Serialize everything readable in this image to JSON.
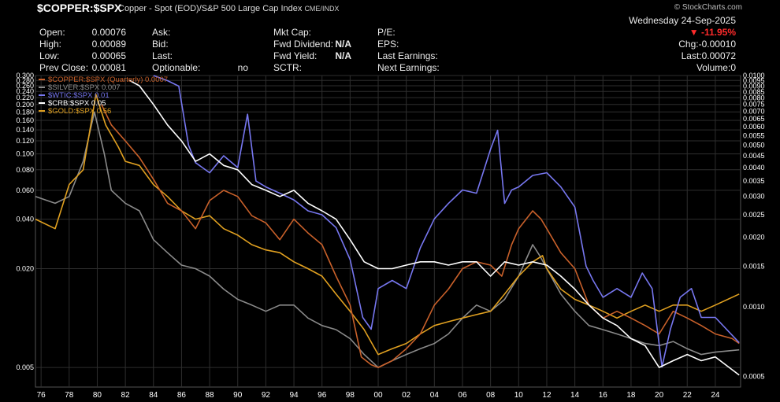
{
  "header": {
    "symbol": "$COPPER:$SPX",
    "description": "Copper - Spot (EOD)/S&P 500 Large Cap Index",
    "exchange": "CME/INDX",
    "brand": "© StockCharts.com",
    "date": "Wednesday  24-Sep-2025",
    "change_pct": "▼ -11.95%",
    "col1": [
      {
        "label": "Open:",
        "value": "0.00076"
      },
      {
        "label": "High:",
        "value": "0.00089"
      },
      {
        "label": "Low:",
        "value": "0.00065"
      },
      {
        "label": "Prev Close:",
        "value": "0.00081"
      }
    ],
    "col2": [
      {
        "label": "Ask:",
        "value": ""
      },
      {
        "label": "Bid:",
        "value": ""
      },
      {
        "label": "Last:",
        "value": ""
      },
      {
        "label": "Optionable:",
        "value": "no"
      }
    ],
    "col3": [
      {
        "label": "Mkt Cap:",
        "value": ""
      },
      {
        "label": "Fwd Dividend:",
        "value": "N/A"
      },
      {
        "label": "Fwd Yield:",
        "value": "N/A"
      },
      {
        "label": "SCTR:",
        "value": ""
      }
    ],
    "col4": [
      {
        "label": "P/E:",
        "value": ""
      },
      {
        "label": "EPS:",
        "value": ""
      },
      {
        "label": "Last Earnings:",
        "value": ""
      },
      {
        "label": "Next Earnings:",
        "value": ""
      }
    ],
    "col5": [
      {
        "label": "Chg:",
        "value": "-0.00010"
      },
      {
        "label": "Last:",
        "value": "0.00072"
      },
      {
        "label": "Volume:",
        "value": "0"
      }
    ]
  },
  "colors": {
    "copper": "#c8602a",
    "silver": "#8a8a8a",
    "wtic": "#7777f0",
    "crb": "#ffffff",
    "gold": "#e0a020",
    "grid": "#2e2e2e"
  },
  "chart_data": {
    "type": "line",
    "log_scale": true,
    "grid": true,
    "legend_position": "top-left",
    "x_tick_labels": [
      "76",
      "78",
      "80",
      "82",
      "84",
      "86",
      "88",
      "90",
      "92",
      "94",
      "96",
      "98",
      "00",
      "02",
      "04",
      "06",
      "08",
      "10",
      "12",
      "14",
      "16",
      "18",
      "20",
      "22",
      "24"
    ],
    "x_range": [
      1975.6,
      2025.8
    ],
    "y_left": {
      "range": [
        0.0038,
        0.3
      ],
      "ticks": [
        0.3,
        0.28,
        0.26,
        0.24,
        0.22,
        0.2,
        0.18,
        0.16,
        0.14,
        0.12,
        0.1,
        0.08,
        0.06,
        0.04,
        0.02,
        0.005
      ],
      "tick_labels": [
        "0.300",
        "0.280",
        "0.260",
        "0.240",
        "0.220",
        "0.200",
        "0.180",
        "0.160",
        "0.140",
        "0.120",
        "0.100",
        "0.080",
        "0.060",
        "0.040",
        "0.020",
        "0.005"
      ]
    },
    "y_right": {
      "range": [
        0.00045,
        0.01
      ],
      "ticks": [
        0.01,
        0.0095,
        0.009,
        0.0085,
        0.008,
        0.0075,
        0.007,
        0.0065,
        0.006,
        0.0055,
        0.005,
        0.0045,
        0.004,
        0.0035,
        0.003,
        0.0025,
        0.002,
        0.0015,
        0.001,
        0.0005
      ],
      "tick_labels": [
        "0.0100",
        "0.0095",
        "0.0090",
        "0.0085",
        "0.0080",
        "0.0075",
        "0.0070",
        "0.0065",
        "0.0060",
        "0.0055",
        "0.0050",
        "0.0045",
        "0.0040",
        "0.0035",
        "0.0030",
        "0.0025",
        "0.0020",
        "0.0015",
        "0.0010",
        "0.0005"
      ]
    },
    "series": [
      {
        "name": "$COPPER:$SPX (Quarterly) 0.0007",
        "color_key": "copper",
        "x": [
          1980.3,
          1981,
          1982,
          1983,
          1984,
          1985,
          1986,
          1987,
          1988,
          1989,
          1990,
          1991,
          1992,
          1993,
          1994,
          1995,
          1996,
          1997,
          1998,
          1998.8,
          1999.5,
          2000,
          2001,
          2002,
          2003,
          2004,
          2005,
          2006,
          2007,
          2008,
          2008.8,
          2009.5,
          2010,
          2011,
          2011.6,
          2012,
          2013,
          2014,
          2015,
          2016,
          2017,
          2018,
          2019,
          2020,
          2021,
          2022,
          2023,
          2024,
          2025.2,
          2025.7
        ],
        "y": [
          0.2,
          0.15,
          0.12,
          0.095,
          0.07,
          0.05,
          0.045,
          0.035,
          0.052,
          0.06,
          0.055,
          0.042,
          0.038,
          0.03,
          0.04,
          0.033,
          0.028,
          0.018,
          0.012,
          0.0058,
          0.0052,
          0.005,
          0.0055,
          0.0065,
          0.008,
          0.012,
          0.015,
          0.02,
          0.022,
          0.021,
          0.018,
          0.028,
          0.035,
          0.045,
          0.04,
          0.035,
          0.025,
          0.02,
          0.012,
          0.01,
          0.011,
          0.01,
          0.009,
          0.008,
          0.011,
          0.01,
          0.009,
          0.008,
          0.0075,
          0.007
        ]
      },
      {
        "name": "$SILVER:$SPX 0.007",
        "color_key": "silver",
        "x": [
          1975.6,
          1977,
          1978,
          1979,
          1979.8,
          1980.5,
          1981,
          1982,
          1983,
          1984,
          1985,
          1986,
          1987,
          1988,
          1989,
          1990,
          1991,
          1992,
          1993,
          1994,
          1995,
          1996,
          1997,
          1998,
          1999,
          2000,
          2001,
          2002,
          2003,
          2004,
          2005,
          2006,
          2007,
          2008,
          2009,
          2010,
          2011,
          2011.5,
          2012,
          2013,
          2014,
          2015,
          2016,
          2017,
          2018,
          2019,
          2020,
          2021,
          2022,
          2023,
          2024,
          2025.7
        ],
        "y": [
          0.055,
          0.05,
          0.055,
          0.09,
          0.18,
          0.1,
          0.06,
          0.05,
          0.045,
          0.03,
          0.025,
          0.021,
          0.02,
          0.018,
          0.015,
          0.013,
          0.012,
          0.011,
          0.012,
          0.012,
          0.01,
          0.009,
          0.0085,
          0.0075,
          0.006,
          0.005,
          0.0055,
          0.006,
          0.0065,
          0.007,
          0.008,
          0.01,
          0.012,
          0.011,
          0.013,
          0.018,
          0.028,
          0.024,
          0.02,
          0.014,
          0.011,
          0.009,
          0.0085,
          0.008,
          0.0075,
          0.007,
          0.0068,
          0.0072,
          0.0065,
          0.006,
          0.0062,
          0.0064
        ]
      },
      {
        "name": "$WTIC:$SPX 0.01",
        "color_key": "wtic",
        "x": [
          1984,
          1985,
          1985.8,
          1986.5,
          1987,
          1988,
          1989,
          1990,
          1990.7,
          1991.3,
          1992,
          1993,
          1994,
          1995,
          1996,
          1997,
          1998,
          1998.9,
          1999.5,
          2000,
          2001,
          2002,
          2003,
          2004,
          2005,
          2006,
          2007,
          2008,
          2008.5,
          2009,
          2009.5,
          2010,
          2011,
          2012,
          2013,
          2014,
          2014.8,
          2015.3,
          2016,
          2017,
          2018,
          2018.8,
          2019.5,
          2020.2,
          2020.8,
          2021.5,
          2022.3,
          2023,
          2024,
          2025.7
        ],
        "y": [
          0.01,
          0.0095,
          0.009,
          0.005,
          0.0042,
          0.0038,
          0.0045,
          0.004,
          0.0068,
          0.0035,
          0.0033,
          0.0031,
          0.0029,
          0.0026,
          0.0025,
          0.0022,
          0.0016,
          0.0009,
          0.0008,
          0.0012,
          0.0013,
          0.0012,
          0.0018,
          0.0024,
          0.0028,
          0.0032,
          0.0031,
          0.0048,
          0.0058,
          0.0028,
          0.0032,
          0.0033,
          0.0037,
          0.0038,
          0.0033,
          0.0027,
          0.0015,
          0.0013,
          0.0011,
          0.0012,
          0.0011,
          0.0014,
          0.0012,
          0.00055,
          0.0008,
          0.0011,
          0.0012,
          0.0009,
          0.0009,
          0.0007
        ]
      },
      {
        "name": "$CRB:$SPX 0.05",
        "color_key": "crb",
        "x": [
          1982.3,
          1983,
          1984,
          1985,
          1986,
          1987,
          1988,
          1989,
          1990,
          1991,
          1992,
          1993,
          1994,
          1995,
          1996,
          1997,
          1998,
          1999,
          2000,
          2001,
          2002,
          2003,
          2004,
          2005,
          2006,
          2007,
          2008,
          2009,
          2010,
          2011,
          2012,
          2013,
          2014,
          2015,
          2016,
          2017,
          2018,
          2019,
          2020,
          2021,
          2022,
          2023,
          2024,
          2025.7
        ],
        "y": [
          0.28,
          0.26,
          0.2,
          0.15,
          0.12,
          0.09,
          0.1,
          0.085,
          0.08,
          0.065,
          0.06,
          0.055,
          0.06,
          0.05,
          0.045,
          0.04,
          0.03,
          0.022,
          0.02,
          0.02,
          0.021,
          0.022,
          0.022,
          0.021,
          0.022,
          0.022,
          0.018,
          0.022,
          0.021,
          0.022,
          0.021,
          0.018,
          0.015,
          0.012,
          0.01,
          0.009,
          0.0075,
          0.0068,
          0.005,
          0.0055,
          0.006,
          0.0055,
          0.0058,
          0.0045
        ]
      },
      {
        "name": "$GOLD:$SPX 0.56",
        "color_key": "gold",
        "x": [
          1975.6,
          1977,
          1978,
          1979,
          1979.9,
          1980.6,
          1981.5,
          1982,
          1983,
          1984,
          1985,
          1986,
          1987,
          1988,
          1989,
          1990,
          1991,
          1992,
          1993,
          1994,
          1995,
          1996,
          1997,
          1998,
          1999,
          2000,
          2001,
          2002,
          2003,
          2004,
          2005,
          2006,
          2007,
          2008,
          2009,
          2010,
          2011,
          2011.7,
          2012,
          2013,
          2014,
          2015,
          2016,
          2017,
          2018,
          2019,
          2020,
          2021,
          2022,
          2023,
          2024,
          2025.7
        ],
        "y": [
          0.04,
          0.035,
          0.065,
          0.08,
          0.23,
          0.15,
          0.11,
          0.09,
          0.085,
          0.065,
          0.055,
          0.045,
          0.04,
          0.042,
          0.035,
          0.032,
          0.028,
          0.026,
          0.025,
          0.022,
          0.02,
          0.018,
          0.014,
          0.011,
          0.0085,
          0.006,
          0.0065,
          0.007,
          0.008,
          0.009,
          0.0095,
          0.01,
          0.0105,
          0.011,
          0.014,
          0.018,
          0.022,
          0.024,
          0.02,
          0.015,
          0.013,
          0.012,
          0.011,
          0.01,
          0.011,
          0.012,
          0.011,
          0.012,
          0.012,
          0.011,
          0.012,
          0.014
        ]
      }
    ]
  }
}
